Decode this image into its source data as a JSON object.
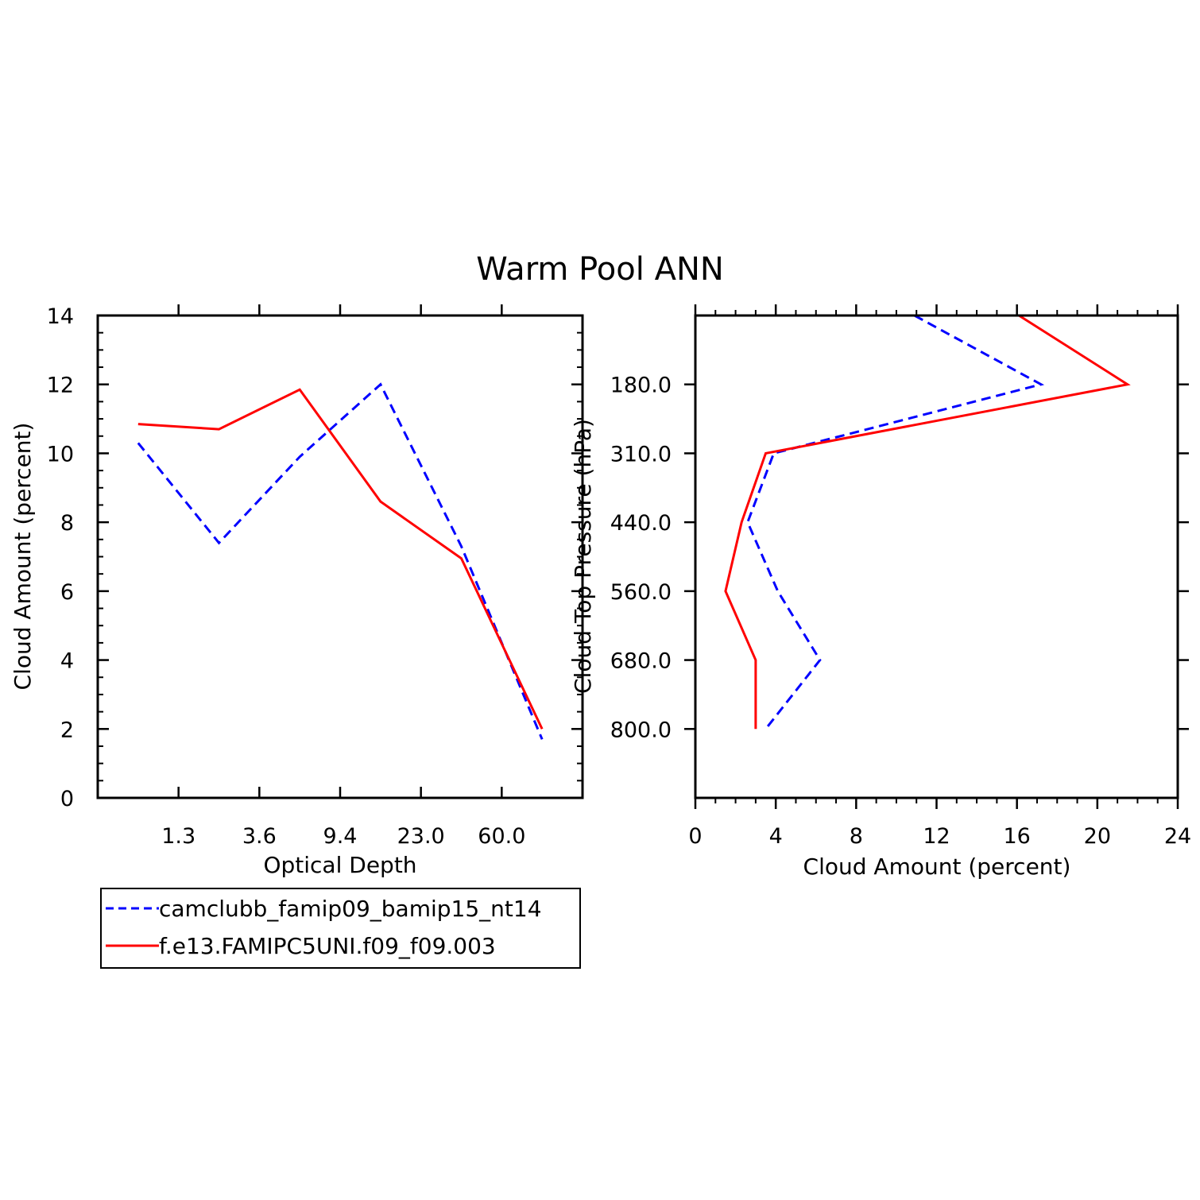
{
  "figure": {
    "title": "Warm Pool ANN"
  },
  "chart_data": [
    {
      "type": "line",
      "xlabel": "Optical Depth",
      "ylabel": "Cloud Amount (percent)",
      "x_tick_labels": [
        "1.3",
        "3.6",
        "9.4",
        "23.0",
        "60.0"
      ],
      "y_tick_labels": [
        "0",
        "2",
        "4",
        "6",
        "8",
        "10",
        "12",
        "14"
      ],
      "ylim": [
        0,
        14
      ],
      "x_bins": [
        "0.3",
        "1.3",
        "3.6",
        "9.4",
        "23.0",
        "60.0",
        "379"
      ],
      "series": [
        {
          "name": "camclubb_famip09_bamip15_nt14",
          "color": "#0000ff",
          "dash": "dashed",
          "values": [
            10.3,
            7.4,
            9.9,
            12.0,
            7.3,
            1.7
          ]
        },
        {
          "name": "f.e13.FAMIPC5UNI.f09_f09.003",
          "color": "#ff0000",
          "dash": "solid",
          "values": [
            10.85,
            10.7,
            11.85,
            8.6,
            6.95,
            2.0
          ]
        }
      ]
    },
    {
      "type": "line",
      "xlabel": "Cloud Amount (percent)",
      "ylabel": "Cloud Top Pressure (hPa)",
      "x_tick_labels": [
        "0",
        "4",
        "8",
        "12",
        "16",
        "20",
        "24"
      ],
      "xlim": [
        0,
        24
      ],
      "y_tick_labels": [
        "180.0",
        "310.0",
        "440.0",
        "560.0",
        "680.0",
        "800.0"
      ],
      "y_levels": [
        "50",
        "180.0",
        "310.0",
        "440.0",
        "560.0",
        "680.0",
        "800.0",
        "1000"
      ],
      "series": [
        {
          "name": "camclubb_famip09_bamip15_nt14",
          "color": "#0000ff",
          "dash": "dashed",
          "values": [
            10.9,
            17.2,
            3.9,
            2.6,
            4.1,
            6.2,
            3.5
          ]
        },
        {
          "name": "f.e13.FAMIPC5UNI.f09_f09.003",
          "color": "#ff0000",
          "dash": "solid",
          "values": [
            16.1,
            21.5,
            3.5,
            2.3,
            1.5,
            3.0,
            3.0
          ]
        }
      ]
    }
  ]
}
